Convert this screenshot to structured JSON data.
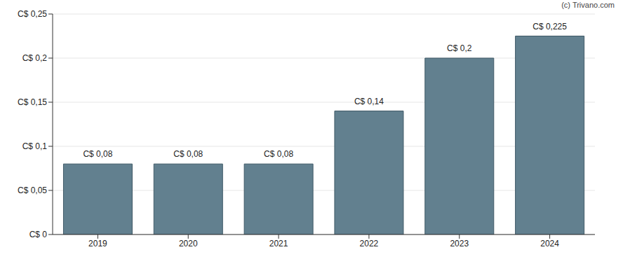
{
  "chart_data": {
    "type": "bar",
    "categories": [
      "2019",
      "2020",
      "2021",
      "2022",
      "2023",
      "2024"
    ],
    "values": [
      0.08,
      0.08,
      0.08,
      0.14,
      0.2,
      0.225
    ],
    "value_labels": [
      "C$ 0,08",
      "C$ 0,08",
      "C$ 0,08",
      "C$ 0,14",
      "C$ 0,2",
      "C$ 0,225"
    ],
    "data_labels": true,
    "color": "#62808f",
    "ylim": [
      0,
      0.25
    ],
    "yticks": [
      {
        "value": 0,
        "label": "C$ 0"
      },
      {
        "value": 0.05,
        "label": "C$ 0,05"
      },
      {
        "value": 0.1,
        "label": "C$ 0,1"
      },
      {
        "value": 0.15,
        "label": "C$ 0,15"
      },
      {
        "value": 0.2,
        "label": "C$ 0,2"
      },
      {
        "value": 0.25,
        "label": "C$ 0,25"
      }
    ],
    "grid": true,
    "annotations": [
      "(c) Trivano.com"
    ]
  }
}
